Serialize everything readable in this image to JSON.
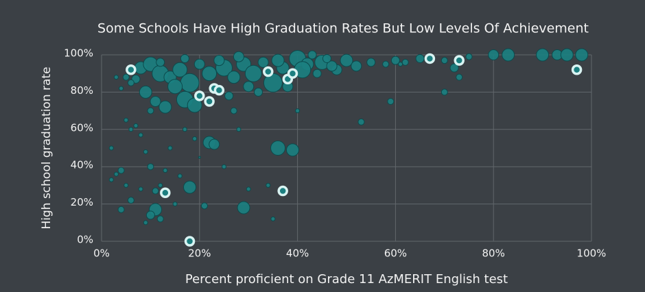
{
  "chart_data": {
    "type": "scatter",
    "title": "Some Schools Have High Graduation Rates But Low Levels Of Achievement",
    "x_label": "Percent proficient on Grade 11 AzMERIT English test",
    "y_label": "High school graduation rate",
    "xlim": [
      0,
      100
    ],
    "ylim": [
      0,
      100
    ],
    "xticks": [
      {
        "value": 0,
        "label": "0%"
      },
      {
        "value": 20,
        "label": "20%"
      },
      {
        "value": 40,
        "label": "40%"
      },
      {
        "value": 60,
        "label": "60%"
      },
      {
        "value": 80,
        "label": "80%"
      },
      {
        "value": 100,
        "label": "100%"
      }
    ],
    "yticks": [
      {
        "value": 0,
        "label": "0%"
      },
      {
        "value": 20,
        "label": "20%"
      },
      {
        "value": 40,
        "label": "40%"
      },
      {
        "value": 60,
        "label": "60%"
      },
      {
        "value": 80,
        "label": "80%"
      },
      {
        "value": 100,
        "label": "100%"
      }
    ],
    "grid": true,
    "series": [
      {
        "color": "#1b7f80",
        "x": [
          8,
          10,
          12,
          14,
          16,
          18,
          20,
          22,
          25,
          27,
          29,
          31,
          33,
          35,
          37,
          40,
          42,
          45,
          48,
          50,
          52,
          55,
          58,
          60,
          62,
          65,
          70,
          75,
          80,
          83,
          90,
          93,
          95,
          98,
          9,
          11,
          13,
          17,
          19,
          15,
          7,
          6,
          5,
          4,
          10,
          7,
          6,
          5,
          8,
          9,
          10,
          4,
          3,
          5,
          6,
          8,
          11,
          10,
          12,
          9,
          4,
          2,
          11,
          12,
          18,
          22,
          23,
          29,
          36,
          39,
          21,
          30,
          40,
          53,
          59,
          61,
          70,
          72,
          73,
          27,
          30,
          32,
          26,
          28,
          14,
          13,
          16,
          34,
          35,
          25,
          17,
          19,
          20,
          15,
          2,
          3,
          38,
          41,
          44,
          47,
          36,
          24,
          12,
          17,
          28,
          43,
          46
        ],
        "values": [
          93,
          95,
          90,
          88,
          92,
          85,
          95,
          90,
          93,
          88,
          95,
          90,
          96,
          85,
          93,
          98,
          95,
          96,
          92,
          97,
          94,
          96,
          95,
          97,
          96,
          98,
          97,
          99,
          100,
          100,
          100,
          100,
          100,
          100,
          80,
          75,
          72,
          76,
          73,
          83,
          87,
          85,
          88,
          82,
          70,
          62,
          60,
          65,
          57,
          48,
          40,
          38,
          36,
          30,
          22,
          28,
          17,
          14,
          12,
          10,
          17,
          33,
          27,
          30,
          29,
          53,
          52,
          18,
          50,
          49,
          19,
          28,
          70,
          64,
          75,
          95,
          80,
          93,
          88,
          70,
          83,
          80,
          78,
          60,
          50,
          38,
          35,
          30,
          12,
          40,
          60,
          55,
          45,
          20,
          50,
          88,
          83,
          92,
          90,
          94,
          97,
          97,
          96,
          98,
          99,
          100,
          98
        ],
        "sizes": [
          6,
          7,
          8,
          6,
          7,
          9,
          5,
          7,
          8,
          6,
          7,
          8,
          5,
          9,
          6,
          8,
          6,
          7,
          5,
          6,
          5,
          4,
          3,
          4,
          3,
          4,
          3,
          3,
          5,
          6,
          6,
          5,
          6,
          6,
          6,
          5,
          6,
          8,
          7,
          7,
          4,
          3,
          3,
          2,
          3,
          2,
          2,
          2,
          2,
          2,
          3,
          3,
          2,
          2,
          3,
          2,
          6,
          4,
          3,
          2,
          3,
          2,
          3,
          2,
          6,
          6,
          5,
          6,
          7,
          6,
          3,
          2,
          2,
          3,
          3,
          2,
          3,
          4,
          3,
          3,
          5,
          4,
          4,
          2,
          2,
          2,
          2,
          2,
          2,
          2,
          2,
          2,
          1,
          2,
          2,
          2,
          5,
          8,
          4,
          5,
          6,
          5,
          4,
          4,
          5,
          4,
          4
        ]
      },
      {
        "color": "#1b7f80",
        "outline": "#d9f3f2",
        "x": [
          6,
          20,
          22,
          23,
          24,
          34,
          38,
          39,
          67,
          73,
          97,
          13,
          37,
          18
        ],
        "values": [
          92,
          78,
          75,
          82,
          81,
          91,
          87,
          90,
          98,
          97,
          92,
          26,
          27,
          0
        ]
      }
    ]
  }
}
